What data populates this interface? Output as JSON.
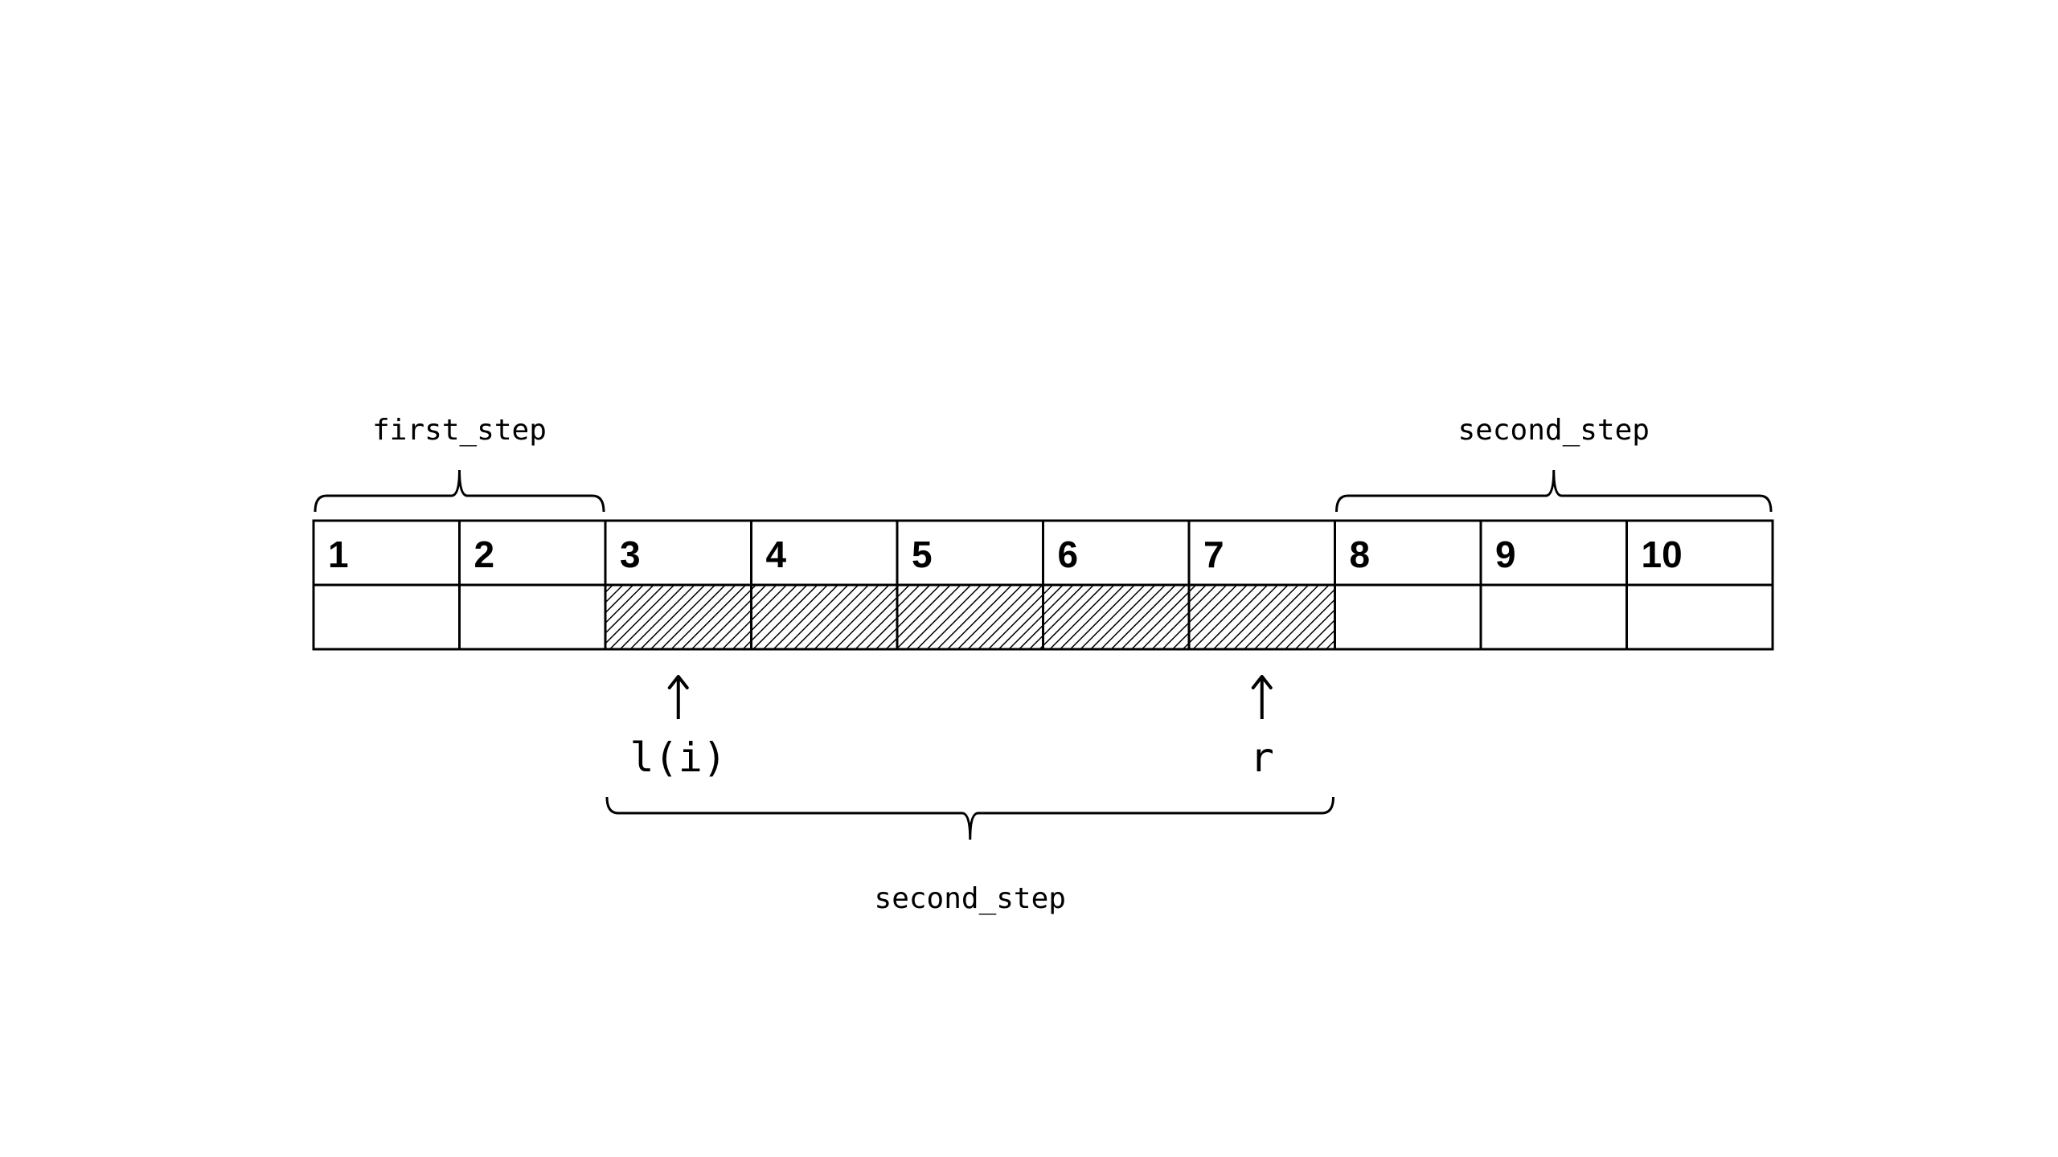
{
  "cells": [
    {
      "label": "1",
      "shaded": false
    },
    {
      "label": "2",
      "shaded": false
    },
    {
      "label": "3",
      "shaded": true
    },
    {
      "label": "4",
      "shaded": true
    },
    {
      "label": "5",
      "shaded": true
    },
    {
      "label": "6",
      "shaded": true
    },
    {
      "label": "7",
      "shaded": true
    },
    {
      "label": "8",
      "shaded": false
    },
    {
      "label": "9",
      "shaded": false
    },
    {
      "label": "10",
      "shaded": false
    }
  ],
  "braces": [
    {
      "label": "first_step",
      "from": 1,
      "to": 2,
      "side": "top"
    },
    {
      "label": "second_step",
      "from": 8,
      "to": 10,
      "side": "top"
    },
    {
      "label": "second_step",
      "from": 3,
      "to": 7,
      "side": "bottom"
    }
  ],
  "pointers": [
    {
      "label": "l(i)",
      "cell": 3
    },
    {
      "label": "r",
      "cell": 7
    }
  ],
  "colors": {
    "stroke": "#000000",
    "background": "#ffffff",
    "hatch": "#000000"
  }
}
